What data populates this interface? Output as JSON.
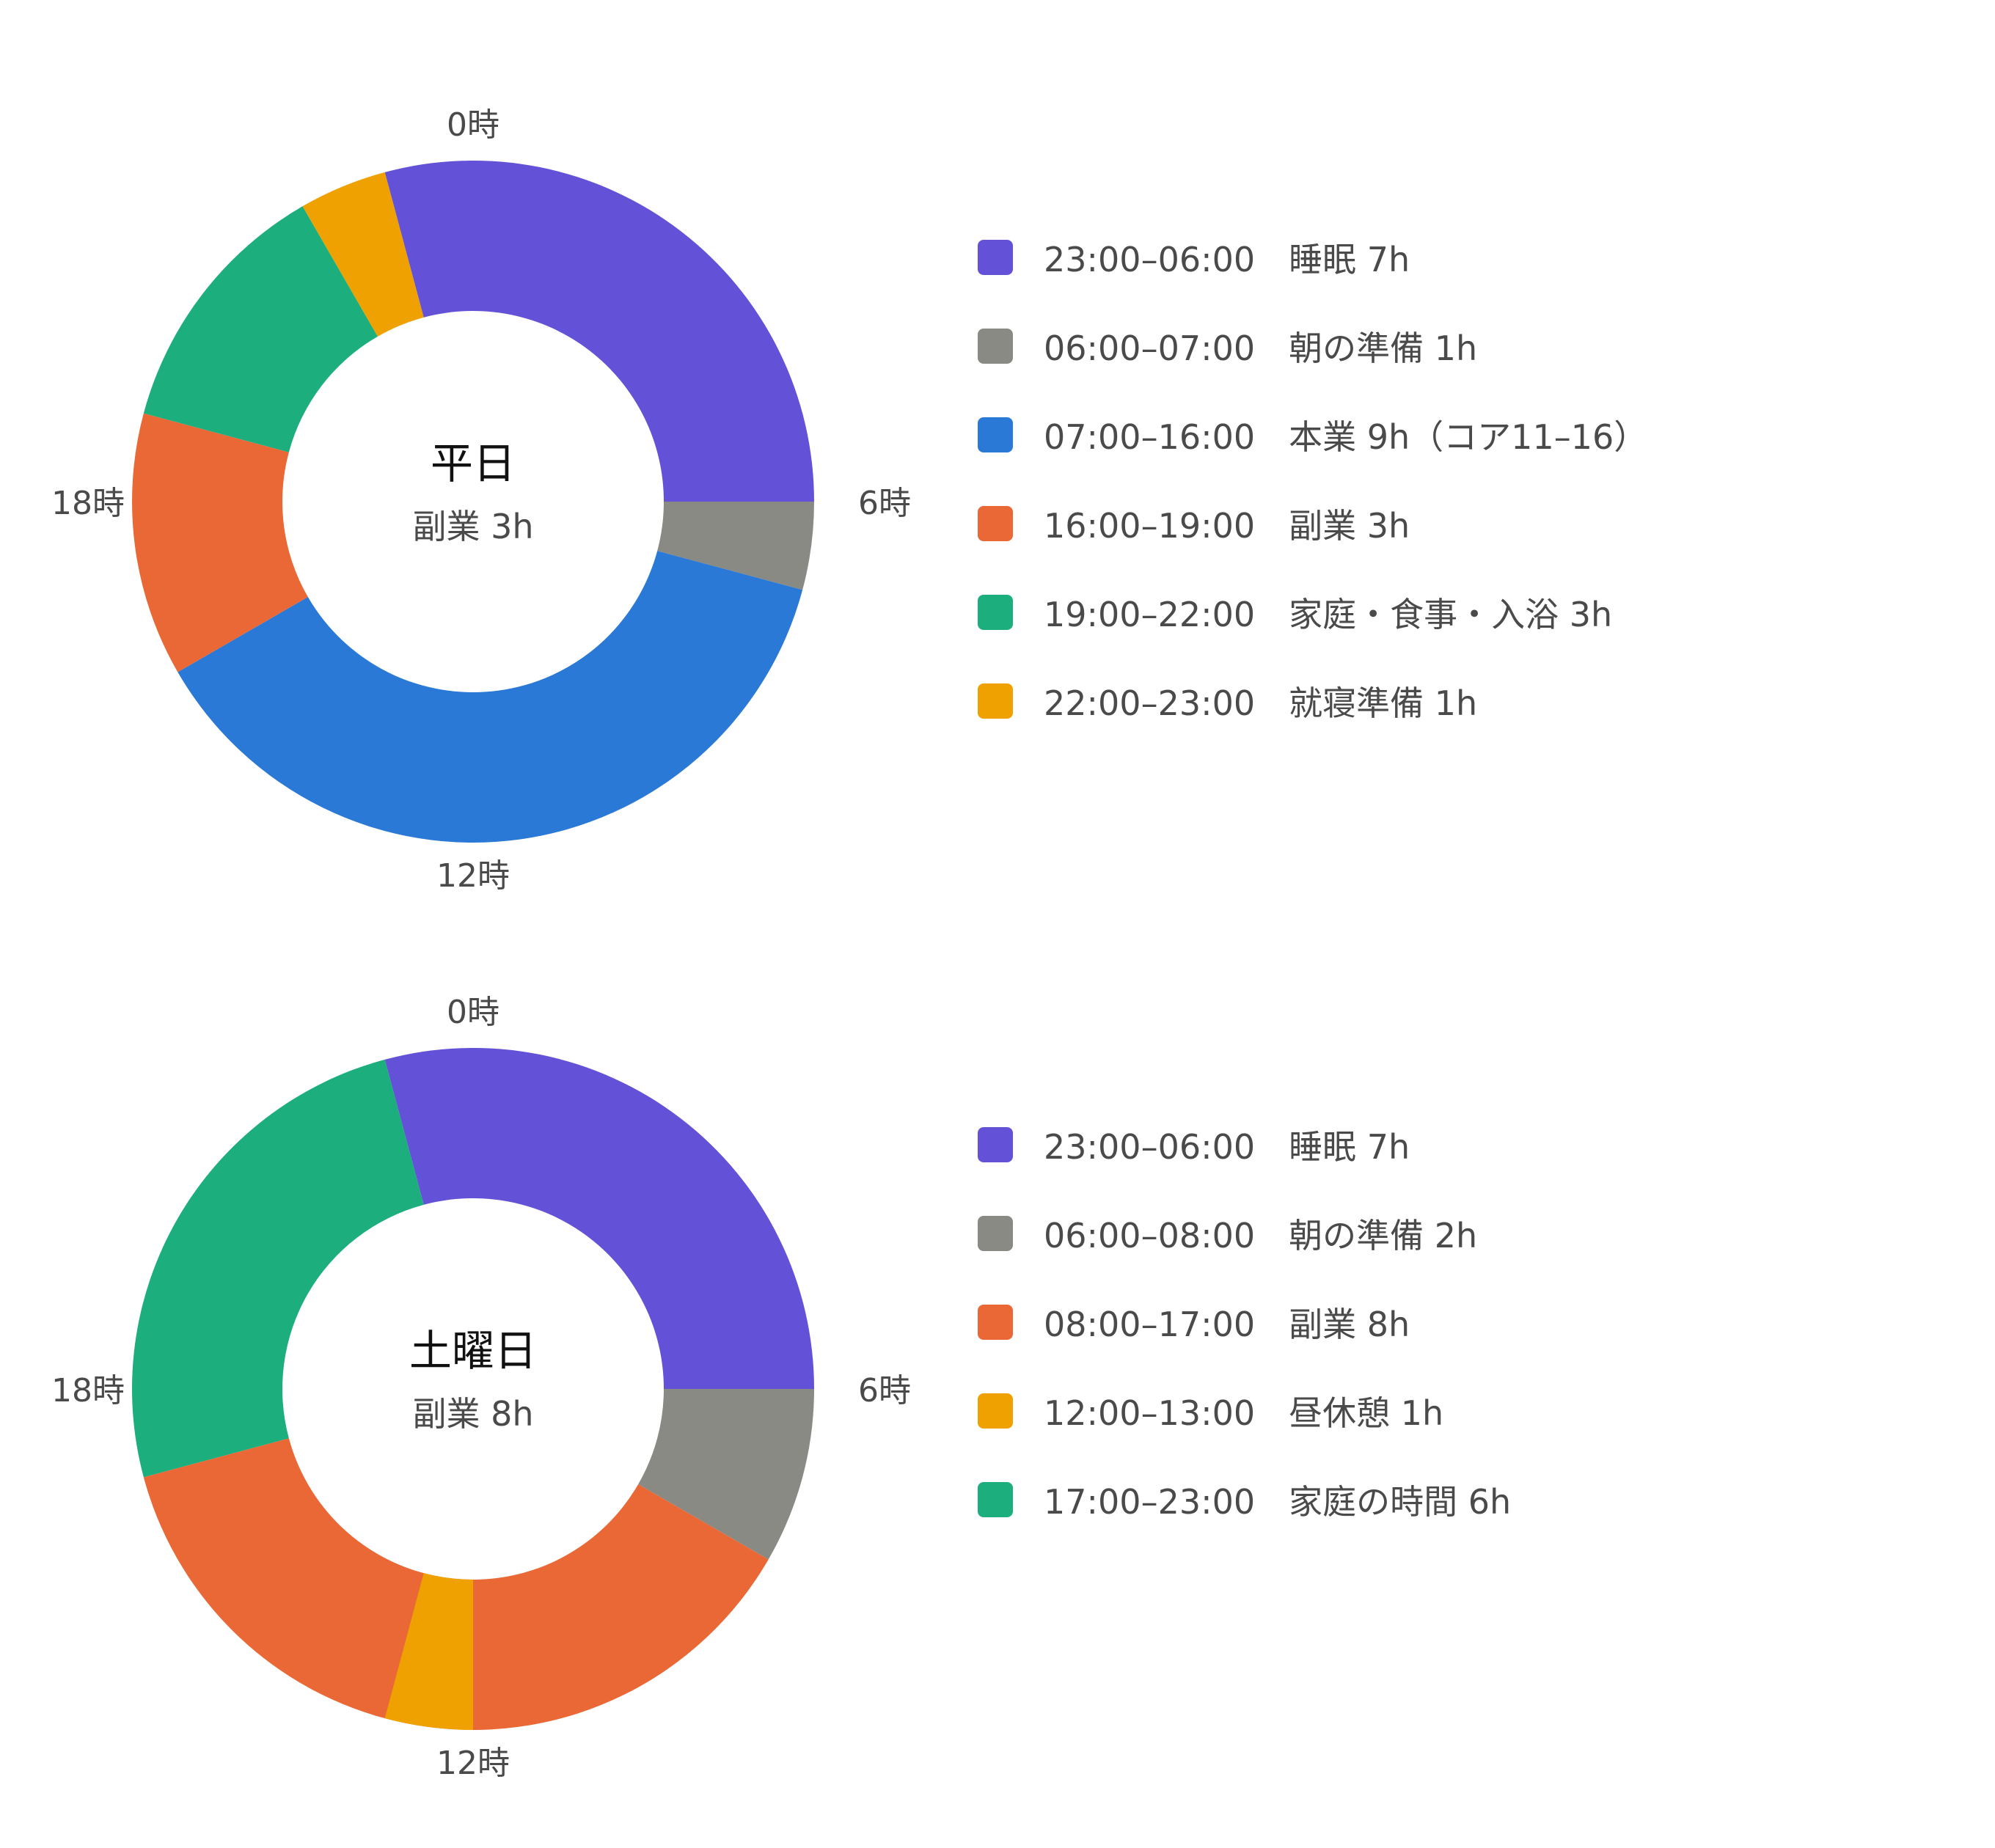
{
  "chart_data": [
    {
      "type": "donut",
      "center_title": "平日",
      "center_subtitle": "副業 3h",
      "clock_labels": {
        "top": "0時",
        "right": "6時",
        "bottom": "12時",
        "left": "18時"
      },
      "slices": [
        {
          "start": 23,
          "end": 30,
          "color": "#6352d7",
          "label": "23:00–06:00　睡眠 7h"
        },
        {
          "start": 6,
          "end": 7,
          "color": "#8a8a84",
          "label": "06:00–07:00　朝の準備 1h"
        },
        {
          "start": 7,
          "end": 16,
          "color": "#2a79d6",
          "label": "07:00–16:00　本業 9h（コア11–16）"
        },
        {
          "start": 16,
          "end": 19,
          "color": "#ea6836",
          "label": "16:00–19:00　副業 3h"
        },
        {
          "start": 19,
          "end": 22,
          "color": "#1caf7d",
          "label": "19:00–22:00　家庭・食事・入浴 3h"
        },
        {
          "start": 22,
          "end": 23,
          "color": "#eea100",
          "label": "22:00–23:00　就寝準備 1h"
        }
      ]
    },
    {
      "type": "donut",
      "center_title": "土曜日",
      "center_subtitle": "副業 8h",
      "clock_labels": {
        "top": "0時",
        "right": "6時",
        "bottom": "12時",
        "left": "18時"
      },
      "slices": [
        {
          "start": 23,
          "end": 30,
          "color": "#6352d7",
          "label": "23:00–06:00　睡眠 7h"
        },
        {
          "start": 6,
          "end": 8,
          "color": "#8a8a84",
          "label": "06:00–08:00　朝の準備 2h"
        },
        {
          "start": 8,
          "end": 17,
          "color": "#ea6836",
          "label": "08:00–17:00　副業 8h"
        },
        {
          "start": 12,
          "end": 13,
          "color": "#eea100",
          "label": "12:00–13:00　昼休憩 1h"
        },
        {
          "start": 17,
          "end": 23,
          "color": "#1caf7d",
          "label": "17:00–23:00　家庭の時間 6h"
        }
      ]
    }
  ]
}
